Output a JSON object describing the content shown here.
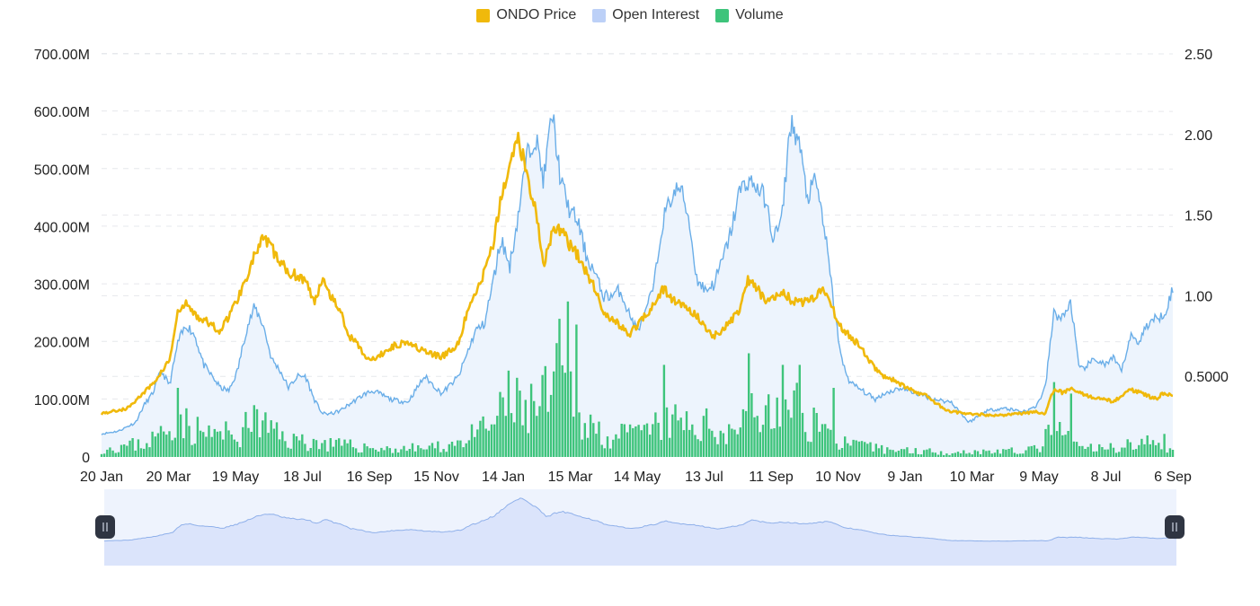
{
  "legend": [
    {
      "label": "ONDO Price",
      "color": "#f0b90b"
    },
    {
      "label": "Open Interest",
      "color": "#bcd0f7"
    },
    {
      "label": "Volume",
      "color": "#3ec47b"
    }
  ],
  "colors": {
    "price": "#f0b90b",
    "oi_line": "#6aaee8",
    "oi_fill": "#edf4fd",
    "volume": "#3ec47b",
    "grid": "#e6e8ec",
    "navigator_fill": "#dbe4fb",
    "navigator_line": "#8fb0ea",
    "navigator_bg": "#eef3fd",
    "handle": "#2f3542"
  },
  "chart_data": {
    "type": "line",
    "x_labels": [
      "20 Jan",
      "20 Mar",
      "19 May",
      "18 Jul",
      "16 Sep",
      "15 Nov",
      "14 Jan",
      "15 Mar",
      "14 May",
      "13 Jul",
      "11 Sep",
      "10 Nov",
      "9 Jan",
      "10 Mar",
      "9 May",
      "8 Jul",
      "6 Sep"
    ],
    "y_left": {
      "ticks": [
        "0",
        "100.00M",
        "200.00M",
        "300.00M",
        "400.00M",
        "500.00M",
        "600.00M",
        "700.00M"
      ],
      "range": [
        0,
        700000000
      ],
      "unit": "USD"
    },
    "y_right": {
      "ticks": [
        "0.5000",
        "1.00",
        "1.50",
        "2.00",
        "2.50"
      ],
      "range": [
        0,
        2.5
      ]
    },
    "grid": true,
    "legend_position": "top-center",
    "series": [
      {
        "name": "ONDO Price",
        "axis": "right",
        "style": "line",
        "points": [
          [
            0,
            0.27
          ],
          [
            3,
            0.3
          ],
          [
            6,
            0.45
          ],
          [
            8,
            0.6
          ],
          [
            9,
            0.9
          ],
          [
            10,
            0.95
          ],
          [
            11,
            0.88
          ],
          [
            12,
            0.85
          ],
          [
            14,
            0.78
          ],
          [
            16,
            0.98
          ],
          [
            18,
            1.25
          ],
          [
            19,
            1.35
          ],
          [
            20,
            1.3
          ],
          [
            21,
            1.2
          ],
          [
            22,
            1.15
          ],
          [
            24,
            1.1
          ],
          [
            25,
            0.95
          ],
          [
            26,
            1.12
          ],
          [
            27,
            1.0
          ],
          [
            28,
            0.92
          ],
          [
            29,
            0.75
          ],
          [
            30,
            0.72
          ],
          [
            31,
            0.62
          ],
          [
            32,
            0.6
          ],
          [
            34,
            0.68
          ],
          [
            36,
            0.72
          ],
          [
            38,
            0.65
          ],
          [
            40,
            0.62
          ],
          [
            42,
            0.7
          ],
          [
            43,
            0.9
          ],
          [
            44,
            1.0
          ],
          [
            46,
            1.3
          ],
          [
            47,
            1.6
          ],
          [
            48,
            1.8
          ],
          [
            49,
            2.0
          ],
          [
            50,
            1.75
          ],
          [
            51,
            1.55
          ],
          [
            52,
            1.2
          ],
          [
            53,
            1.38
          ],
          [
            54,
            1.42
          ],
          [
            55,
            1.32
          ],
          [
            56,
            1.25
          ],
          [
            57,
            1.15
          ],
          [
            58,
            1.05
          ],
          [
            59,
            0.9
          ],
          [
            60,
            0.85
          ],
          [
            61,
            0.82
          ],
          [
            62,
            0.75
          ],
          [
            63,
            0.82
          ],
          [
            64,
            0.88
          ],
          [
            65,
            0.95
          ],
          [
            66,
            1.05
          ],
          [
            67,
            0.98
          ],
          [
            68,
            0.95
          ],
          [
            70,
            0.88
          ],
          [
            71,
            0.8
          ],
          [
            72,
            0.75
          ],
          [
            73,
            0.78
          ],
          [
            74,
            0.85
          ],
          [
            75,
            0.9
          ],
          [
            76,
            1.1
          ],
          [
            77,
            1.05
          ],
          [
            78,
            0.98
          ],
          [
            79,
            1.0
          ],
          [
            80,
            1.02
          ],
          [
            81,
            0.98
          ],
          [
            82,
            0.95
          ],
          [
            83,
            0.98
          ],
          [
            84,
            1.0
          ],
          [
            85,
            1.05
          ],
          [
            86,
            0.92
          ],
          [
            87,
            0.8
          ],
          [
            88,
            0.75
          ],
          [
            89,
            0.7
          ],
          [
            90,
            0.62
          ],
          [
            91,
            0.55
          ],
          [
            92,
            0.5
          ],
          [
            93,
            0.48
          ],
          [
            94,
            0.45
          ],
          [
            95,
            0.42
          ],
          [
            96,
            0.4
          ],
          [
            97,
            0.38
          ],
          [
            98,
            0.34
          ],
          [
            99,
            0.3
          ],
          [
            100,
            0.28
          ],
          [
            102,
            0.27
          ],
          [
            104,
            0.26
          ],
          [
            106,
            0.26
          ],
          [
            108,
            0.27
          ],
          [
            110,
            0.28
          ],
          [
            111,
            0.27
          ],
          [
            112,
            0.42
          ],
          [
            113,
            0.4
          ],
          [
            114,
            0.42
          ],
          [
            115,
            0.4
          ],
          [
            116,
            0.38
          ],
          [
            117,
            0.36
          ],
          [
            118,
            0.36
          ],
          [
            119,
            0.34
          ],
          [
            120,
            0.38
          ],
          [
            121,
            0.42
          ],
          [
            122,
            0.4
          ],
          [
            123,
            0.38
          ],
          [
            124,
            0.36
          ],
          [
            125,
            0.4
          ],
          [
            126,
            0.37
          ]
        ]
      },
      {
        "name": "Open Interest",
        "axis": "left",
        "style": "area",
        "points": [
          [
            0,
            40
          ],
          [
            2,
            45
          ],
          [
            4,
            60
          ],
          [
            5,
            90
          ],
          [
            6,
            110
          ],
          [
            7,
            150
          ],
          [
            8,
            125
          ],
          [
            9,
            200
          ],
          [
            10,
            230
          ],
          [
            11,
            210
          ],
          [
            12,
            160
          ],
          [
            13,
            140
          ],
          [
            14,
            120
          ],
          [
            15,
            115
          ],
          [
            16,
            150
          ],
          [
            17,
            220
          ],
          [
            18,
            260
          ],
          [
            19,
            230
          ],
          [
            20,
            170
          ],
          [
            21,
            150
          ],
          [
            22,
            120
          ],
          [
            23,
            140
          ],
          [
            24,
            140
          ],
          [
            25,
            100
          ],
          [
            26,
            75
          ],
          [
            27,
            75
          ],
          [
            28,
            80
          ],
          [
            29,
            90
          ],
          [
            30,
            100
          ],
          [
            31,
            110
          ],
          [
            32,
            115
          ],
          [
            34,
            100
          ],
          [
            36,
            95
          ],
          [
            38,
            140
          ],
          [
            40,
            110
          ],
          [
            42,
            140
          ],
          [
            43,
            180
          ],
          [
            44,
            220
          ],
          [
            45,
            230
          ],
          [
            46,
            300
          ],
          [
            47,
            380
          ],
          [
            48,
            330
          ],
          [
            49,
            420
          ],
          [
            50,
            520
          ],
          [
            51,
            560
          ],
          [
            52,
            480
          ],
          [
            53,
            600
          ],
          [
            54,
            480
          ],
          [
            55,
            430
          ],
          [
            56,
            410
          ],
          [
            57,
            350
          ],
          [
            58,
            320
          ],
          [
            59,
            280
          ],
          [
            60,
            280
          ],
          [
            61,
            290
          ],
          [
            62,
            250
          ],
          [
            63,
            220
          ],
          [
            64,
            250
          ],
          [
            65,
            300
          ],
          [
            66,
            410
          ],
          [
            67,
            450
          ],
          [
            68,
            470
          ],
          [
            69,
            420
          ],
          [
            70,
            310
          ],
          [
            71,
            290
          ],
          [
            72,
            300
          ],
          [
            73,
            340
          ],
          [
            74,
            390
          ],
          [
            75,
            460
          ],
          [
            76,
            480
          ],
          [
            77,
            470
          ],
          [
            78,
            450
          ],
          [
            79,
            380
          ],
          [
            80,
            410
          ],
          [
            81,
            580
          ],
          [
            82,
            550
          ],
          [
            83,
            450
          ],
          [
            84,
            480
          ],
          [
            85,
            400
          ],
          [
            86,
            280
          ],
          [
            87,
            170
          ],
          [
            88,
            130
          ],
          [
            89,
            120
          ],
          [
            90,
            110
          ],
          [
            91,
            100
          ],
          [
            92,
            110
          ],
          [
            94,
            120
          ],
          [
            96,
            110
          ],
          [
            98,
            100
          ],
          [
            100,
            95
          ],
          [
            102,
            60
          ],
          [
            104,
            80
          ],
          [
            106,
            85
          ],
          [
            108,
            80
          ],
          [
            109,
            80
          ],
          [
            110,
            90
          ],
          [
            111,
            120
          ],
          [
            112,
            250
          ],
          [
            113,
            240
          ],
          [
            114,
            270
          ],
          [
            115,
            150
          ],
          [
            116,
            160
          ],
          [
            117,
            170
          ],
          [
            118,
            160
          ],
          [
            119,
            170
          ],
          [
            120,
            150
          ],
          [
            121,
            210
          ],
          [
            122,
            200
          ],
          [
            123,
            230
          ],
          [
            124,
            240
          ],
          [
            125,
            250
          ],
          [
            126,
            290
          ],
          [
            127,
            230
          ]
        ]
      },
      {
        "name": "Volume",
        "axis": "left",
        "style": "bar",
        "envelope": [
          [
            0,
            20
          ],
          [
            5,
            35
          ],
          [
            8,
            70
          ],
          [
            9,
            110
          ],
          [
            10,
            80
          ],
          [
            12,
            60
          ],
          [
            16,
            55
          ],
          [
            18,
            90
          ],
          [
            22,
            45
          ],
          [
            28,
            30
          ],
          [
            34,
            20
          ],
          [
            40,
            25
          ],
          [
            44,
            55
          ],
          [
            46,
            85
          ],
          [
            48,
            130
          ],
          [
            50,
            120
          ],
          [
            52,
            140
          ],
          [
            54,
            200
          ],
          [
            56,
            130
          ],
          [
            58,
            70
          ],
          [
            60,
            50
          ],
          [
            64,
            60
          ],
          [
            66,
            90
          ],
          [
            70,
            80
          ],
          [
            74,
            70
          ],
          [
            76,
            110
          ],
          [
            78,
            100
          ],
          [
            80,
            110
          ],
          [
            82,
            120
          ],
          [
            84,
            90
          ],
          [
            86,
            50
          ],
          [
            88,
            30
          ],
          [
            92,
            20
          ],
          [
            100,
            12
          ],
          [
            104,
            15
          ],
          [
            108,
            15
          ],
          [
            110,
            20
          ],
          [
            111,
            45
          ],
          [
            112,
            70
          ],
          [
            113,
            60
          ],
          [
            115,
            25
          ],
          [
            118,
            20
          ],
          [
            120,
            30
          ],
          [
            122,
            40
          ],
          [
            124,
            30
          ],
          [
            126,
            25
          ]
        ],
        "spikes": [
          [
            9,
            120
          ],
          [
            18,
            90
          ],
          [
            48,
            150
          ],
          [
            54,
            240
          ],
          [
            55,
            270
          ],
          [
            56,
            230
          ],
          [
            66,
            160
          ],
          [
            76,
            180
          ],
          [
            80,
            160
          ],
          [
            82,
            160
          ],
          [
            86,
            120
          ],
          [
            112,
            130
          ],
          [
            114,
            110
          ],
          [
            125,
            40
          ]
        ]
      }
    ]
  }
}
